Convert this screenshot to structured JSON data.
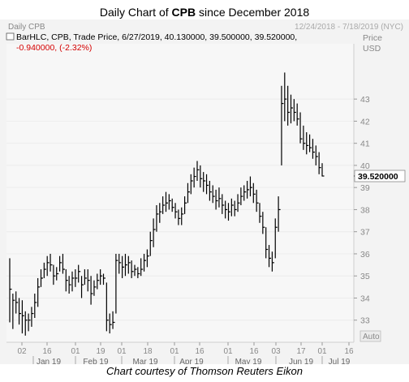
{
  "title": {
    "prefix": "Daily Chart of ",
    "ticker": "CPB",
    "suffix": " since December 2018"
  },
  "caption": "Chart courtesy of Thomson Reuters Eikon",
  "chart_data": {
    "type": "ohlc",
    "panel_label": "Daily CPB",
    "date_range": "12/24/2018 - 7/18/2019 (NYC)",
    "info_line1": "BarHLC, CPB, Trade Price, 6/27/2019, 40.130000, 39.500000, 39.520000,",
    "info_line2": "-0.940000, (-2.32%)",
    "axis_title": "Price",
    "axis_unit": "USD",
    "auto_label": "Auto",
    "last_price": "39.520000",
    "ylim": [
      32.0,
      45.5
    ],
    "y_ticks": [
      33,
      34,
      35,
      36,
      37,
      38,
      39,
      40,
      41,
      42,
      43
    ],
    "x_day_ticks": [
      "02",
      "16",
      "01",
      "19",
      "01",
      "18",
      "01",
      "16",
      "01",
      "16",
      "03",
      "17",
      "01",
      "16"
    ],
    "x_month_labels": [
      "Jan 19",
      "Feb 19",
      "Mar 19",
      "Apr 19",
      "May 19",
      "Jun 19",
      "Jul 19"
    ],
    "colors": {
      "bar": "#000000",
      "background": "#f3f3f3",
      "axis_text": "#888888",
      "info_red": "#d40000",
      "info_black": "#000000"
    },
    "bars": [
      {
        "h": 35.8,
        "l": 32.9,
        "c": 34.4
      },
      {
        "h": 34.2,
        "l": 32.6,
        "c": 33.9
      },
      {
        "h": 34.3,
        "l": 33.3,
        "c": 33.8
      },
      {
        "h": 34.0,
        "l": 32.8,
        "c": 33.3
      },
      {
        "h": 33.9,
        "l": 32.4,
        "c": 33.2
      },
      {
        "h": 33.4,
        "l": 32.3,
        "c": 33.0
      },
      {
        "h": 33.3,
        "l": 32.5,
        "c": 33.0
      },
      {
        "h": 33.6,
        "l": 32.7,
        "c": 33.3
      },
      {
        "h": 34.2,
        "l": 33.1,
        "c": 33.8
      },
      {
        "h": 34.9,
        "l": 33.6,
        "c": 34.5
      },
      {
        "h": 35.3,
        "l": 34.5,
        "c": 34.9
      },
      {
        "h": 35.6,
        "l": 34.9,
        "c": 35.3
      },
      {
        "h": 35.9,
        "l": 35.0,
        "c": 35.6
      },
      {
        "h": 36.0,
        "l": 35.2,
        "c": 35.5
      },
      {
        "h": 35.5,
        "l": 34.6,
        "c": 35.0
      },
      {
        "h": 35.4,
        "l": 34.8,
        "c": 35.1
      },
      {
        "h": 35.9,
        "l": 35.2,
        "c": 35.6
      },
      {
        "h": 36.0,
        "l": 35.1,
        "c": 35.3
      },
      {
        "h": 35.3,
        "l": 34.3,
        "c": 34.8
      },
      {
        "h": 35.0,
        "l": 34.2,
        "c": 34.6
      },
      {
        "h": 35.2,
        "l": 34.3,
        "c": 34.9
      },
      {
        "h": 35.3,
        "l": 34.5,
        "c": 34.9
      },
      {
        "h": 35.5,
        "l": 34.7,
        "c": 35.2
      },
      {
        "h": 35.0,
        "l": 34.0,
        "c": 34.6
      },
      {
        "h": 35.3,
        "l": 34.6,
        "c": 34.9
      },
      {
        "h": 35.3,
        "l": 34.3,
        "c": 34.8
      },
      {
        "h": 35.0,
        "l": 33.7,
        "c": 34.2
      },
      {
        "h": 34.8,
        "l": 34.1,
        "c": 34.5
      },
      {
        "h": 35.1,
        "l": 34.4,
        "c": 34.8
      },
      {
        "h": 35.3,
        "l": 34.6,
        "c": 35.0
      },
      {
        "h": 35.1,
        "l": 34.6,
        "c": 34.9
      },
      {
        "h": 34.7,
        "l": 32.5,
        "c": 33.0
      },
      {
        "h": 33.3,
        "l": 32.4,
        "c": 32.8
      },
      {
        "h": 33.4,
        "l": 32.6,
        "c": 32.9
      },
      {
        "h": 36.0,
        "l": 33.3,
        "c": 35.7
      },
      {
        "h": 36.0,
        "l": 35.1,
        "c": 35.6
      },
      {
        "h": 35.9,
        "l": 34.9,
        "c": 35.4
      },
      {
        "h": 36.0,
        "l": 35.0,
        "c": 35.5
      },
      {
        "h": 35.9,
        "l": 35.1,
        "c": 35.6
      },
      {
        "h": 35.7,
        "l": 34.9,
        "c": 35.2
      },
      {
        "h": 35.5,
        "l": 35.0,
        "c": 35.3
      },
      {
        "h": 35.4,
        "l": 34.9,
        "c": 35.1
      },
      {
        "h": 35.8,
        "l": 35.0,
        "c": 35.3
      },
      {
        "h": 36.0,
        "l": 35.2,
        "c": 35.7
      },
      {
        "h": 36.2,
        "l": 35.4,
        "c": 35.9
      },
      {
        "h": 37.0,
        "l": 35.9,
        "c": 36.6
      },
      {
        "h": 37.6,
        "l": 36.3,
        "c": 37.1
      },
      {
        "h": 38.2,
        "l": 37.0,
        "c": 37.8
      },
      {
        "h": 38.3,
        "l": 37.4,
        "c": 37.9
      },
      {
        "h": 38.6,
        "l": 37.8,
        "c": 38.2
      },
      {
        "h": 38.8,
        "l": 37.9,
        "c": 38.3
      },
      {
        "h": 38.7,
        "l": 38.0,
        "c": 38.4
      },
      {
        "h": 38.5,
        "l": 37.9,
        "c": 38.1
      },
      {
        "h": 38.3,
        "l": 37.6,
        "c": 37.9
      },
      {
        "h": 38.0,
        "l": 37.3,
        "c": 37.6
      },
      {
        "h": 38.1,
        "l": 37.3,
        "c": 37.8
      },
      {
        "h": 38.6,
        "l": 37.8,
        "c": 38.3
      },
      {
        "h": 39.2,
        "l": 38.3,
        "c": 38.8
      },
      {
        "h": 39.6,
        "l": 38.7,
        "c": 39.3
      },
      {
        "h": 39.9,
        "l": 39.0,
        "c": 39.5
      },
      {
        "h": 40.2,
        "l": 39.3,
        "c": 39.8
      },
      {
        "h": 40.0,
        "l": 39.0,
        "c": 39.4
      },
      {
        "h": 39.7,
        "l": 38.8,
        "c": 39.3
      },
      {
        "h": 39.6,
        "l": 38.7,
        "c": 39.1
      },
      {
        "h": 39.3,
        "l": 38.4,
        "c": 38.8
      },
      {
        "h": 39.1,
        "l": 38.3,
        "c": 38.6
      },
      {
        "h": 38.9,
        "l": 38.0,
        "c": 38.4
      },
      {
        "h": 39.0,
        "l": 38.1,
        "c": 38.5
      },
      {
        "h": 38.7,
        "l": 37.8,
        "c": 38.2
      },
      {
        "h": 38.4,
        "l": 37.6,
        "c": 38.0
      },
      {
        "h": 38.3,
        "l": 37.5,
        "c": 37.9
      },
      {
        "h": 38.5,
        "l": 37.7,
        "c": 38.2
      },
      {
        "h": 38.4,
        "l": 37.7,
        "c": 38.0
      },
      {
        "h": 38.7,
        "l": 37.9,
        "c": 38.3
      },
      {
        "h": 39.0,
        "l": 38.2,
        "c": 38.6
      },
      {
        "h": 39.1,
        "l": 38.4,
        "c": 38.8
      },
      {
        "h": 39.3,
        "l": 38.5,
        "c": 38.9
      },
      {
        "h": 39.5,
        "l": 38.6,
        "c": 39.0
      },
      {
        "h": 39.2,
        "l": 38.3,
        "c": 38.7
      },
      {
        "h": 38.9,
        "l": 37.9,
        "c": 38.3
      },
      {
        "h": 38.3,
        "l": 37.4,
        "c": 37.7
      },
      {
        "h": 37.9,
        "l": 36.9,
        "c": 37.2
      },
      {
        "h": 37.2,
        "l": 35.8,
        "c": 36.2
      },
      {
        "h": 36.4,
        "l": 35.4,
        "c": 35.8
      },
      {
        "h": 36.1,
        "l": 35.2,
        "c": 35.6
      },
      {
        "h": 37.6,
        "l": 35.8,
        "c": 37.2
      },
      {
        "h": 38.6,
        "l": 37.0,
        "c": 38.0
      },
      {
        "h": 43.6,
        "l": 40.0,
        "c": 42.8
      },
      {
        "h": 44.2,
        "l": 42.0,
        "c": 43.0
      },
      {
        "h": 43.6,
        "l": 41.8,
        "c": 42.4
      },
      {
        "h": 43.2,
        "l": 41.9,
        "c": 42.6
      },
      {
        "h": 43.0,
        "l": 42.0,
        "c": 42.4
      },
      {
        "h": 42.8,
        "l": 41.8,
        "c": 42.1
      },
      {
        "h": 42.4,
        "l": 41.0,
        "c": 41.2
      },
      {
        "h": 41.8,
        "l": 40.7,
        "c": 41.0
      },
      {
        "h": 41.5,
        "l": 40.5,
        "c": 40.9
      },
      {
        "h": 41.4,
        "l": 40.6,
        "c": 40.8
      },
      {
        "h": 41.2,
        "l": 40.3,
        "c": 40.6
      },
      {
        "h": 40.9,
        "l": 40.0,
        "c": 40.4
      },
      {
        "h": 40.6,
        "l": 39.6,
        "c": 39.9
      },
      {
        "h": 40.1,
        "l": 39.5,
        "c": 39.52
      }
    ]
  }
}
